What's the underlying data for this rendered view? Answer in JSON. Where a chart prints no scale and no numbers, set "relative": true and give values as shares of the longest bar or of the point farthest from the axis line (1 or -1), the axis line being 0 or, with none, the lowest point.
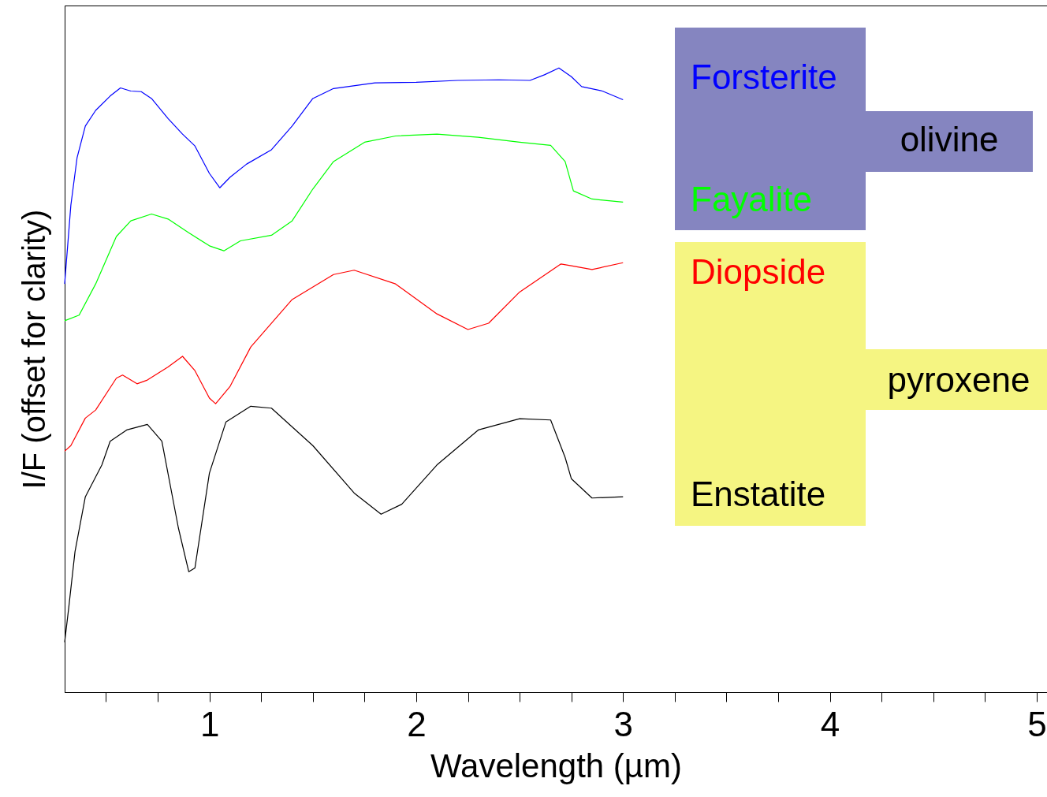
{
  "chart_data": {
    "type": "line",
    "xlabel": "Wavelength (µm)",
    "ylabel": "I/F (offset for clarity)",
    "relative": true,
    "xlim": [
      0.3,
      5.05
    ],
    "xticks": [
      {
        "value": 0.5,
        "label": null
      },
      {
        "value": 0.75,
        "label": null
      },
      1,
      {
        "value": 1.25,
        "label": null
      },
      {
        "value": 1.5,
        "label": null
      },
      {
        "value": 1.75,
        "label": null
      },
      2,
      {
        "value": 2.25,
        "label": null
      },
      {
        "value": 2.5,
        "label": null
      },
      {
        "value": 2.75,
        "label": null
      },
      3,
      {
        "value": 3.25,
        "label": null
      },
      {
        "value": 3.5,
        "label": null
      },
      {
        "value": 3.75,
        "label": null
      },
      4,
      {
        "value": 4.25,
        "label": null
      },
      {
        "value": 4.5,
        "label": null
      },
      {
        "value": 4.75,
        "label": null
      },
      5
    ],
    "legend": "top right",
    "grid": false,
    "marker": "none",
    "line_style": "solid",
    "annotations": [
      "olivine",
      "pyroxene"
    ],
    "series": [
      {
        "name": "Forsterite",
        "color": "#0000ff",
        "x": [
          0.3,
          0.33,
          0.36,
          0.4,
          0.45,
          0.52,
          0.57,
          0.62,
          0.67,
          0.72,
          0.8,
          0.87,
          0.93,
          1.0,
          1.05,
          1.1,
          1.18,
          1.3,
          1.4,
          1.5,
          1.6,
          1.8,
          2.0,
          2.2,
          2.4,
          2.55,
          2.62,
          2.69,
          2.75,
          2.8,
          2.9,
          3.0
        ],
        "values": [
          0.654,
          0.78,
          0.856,
          0.907,
          0.932,
          0.955,
          0.968,
          0.963,
          0.962,
          0.951,
          0.919,
          0.894,
          0.875,
          0.831,
          0.808,
          0.825,
          0.846,
          0.869,
          0.907,
          0.951,
          0.967,
          0.976,
          0.977,
          0.98,
          0.981,
          0.98,
          0.989,
          1.0,
          0.986,
          0.97,
          0.963,
          0.949
        ]
      },
      {
        "name": "Fayalite",
        "color": "#00ff00",
        "x": [
          0.3,
          0.37,
          0.45,
          0.55,
          0.62,
          0.72,
          0.8,
          0.9,
          1.0,
          1.07,
          1.15,
          1.3,
          1.4,
          1.5,
          1.6,
          1.75,
          1.9,
          2.1,
          2.3,
          2.5,
          2.65,
          2.72,
          2.76,
          2.85,
          3.0
        ],
        "values": [
          0.595,
          0.604,
          0.654,
          0.73,
          0.755,
          0.766,
          0.758,
          0.736,
          0.715,
          0.707,
          0.723,
          0.732,
          0.755,
          0.806,
          0.85,
          0.881,
          0.891,
          0.894,
          0.889,
          0.881,
          0.876,
          0.85,
          0.803,
          0.79,
          0.785
        ]
      },
      {
        "name": "Diopside",
        "color": "#ff0000",
        "x": [
          0.3,
          0.33,
          0.4,
          0.45,
          0.55,
          0.58,
          0.65,
          0.7,
          0.8,
          0.87,
          0.93,
          1.0,
          1.03,
          1.1,
          1.2,
          1.4,
          1.6,
          1.7,
          1.9,
          2.1,
          2.25,
          2.35,
          2.5,
          2.7,
          2.75,
          2.85,
          3.0
        ],
        "values": [
          0.386,
          0.395,
          0.439,
          0.452,
          0.503,
          0.508,
          0.494,
          0.5,
          0.521,
          0.538,
          0.515,
          0.471,
          0.462,
          0.49,
          0.553,
          0.629,
          0.669,
          0.676,
          0.654,
          0.606,
          0.581,
          0.591,
          0.641,
          0.686,
          0.683,
          0.677,
          0.688
        ]
      },
      {
        "name": "Enstatite",
        "color": "#000000",
        "x": [
          0.3,
          0.32,
          0.35,
          0.4,
          0.48,
          0.52,
          0.6,
          0.7,
          0.77,
          0.85,
          0.9,
          0.93,
          1.0,
          1.08,
          1.2,
          1.3,
          1.5,
          1.7,
          1.83,
          1.93,
          2.1,
          2.3,
          2.5,
          2.65,
          2.72,
          2.75,
          2.85,
          3.0
        ],
        "values": [
          0.08,
          0.136,
          0.225,
          0.313,
          0.364,
          0.402,
          0.42,
          0.429,
          0.402,
          0.263,
          0.193,
          0.199,
          0.351,
          0.433,
          0.458,
          0.455,
          0.395,
          0.319,
          0.285,
          0.301,
          0.364,
          0.42,
          0.438,
          0.436,
          0.376,
          0.342,
          0.311,
          0.313
        ]
      }
    ]
  }
}
